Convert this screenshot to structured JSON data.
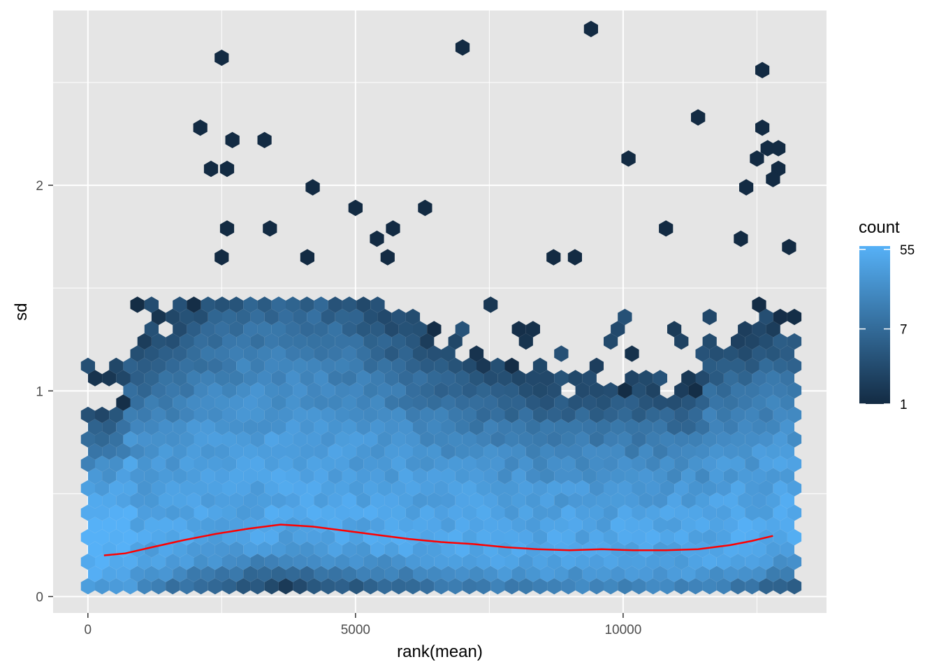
{
  "chart_data": {
    "type": "hexbin",
    "title": "",
    "xlabel": "rank(mean)",
    "ylabel": "sd",
    "xlim": [
      -650,
      13800
    ],
    "ylim": [
      -0.08,
      2.85
    ],
    "x_ticks": [
      0,
      5000,
      10000
    ],
    "x_tick_labels": [
      "0",
      "5000",
      "10000"
    ],
    "y_ticks": [
      0,
      1,
      2
    ],
    "y_tick_labels": [
      "0",
      "1",
      "2"
    ],
    "x_minor_ticks": [
      2500,
      7500,
      12500
    ],
    "y_minor_ticks": [
      0.5,
      1.5,
      2.5
    ],
    "grid": true,
    "panel_background": "#e5e5e5",
    "grid_color": "#ffffff",
    "legend": {
      "title": "count",
      "placement": "right",
      "scale": "log",
      "labels": [
        "55",
        "7",
        "1"
      ],
      "values": [
        55,
        7,
        1
      ],
      "color_low": "#132b43",
      "color_high": "#56b1f7"
    },
    "hexbin": {
      "bins": 50,
      "x_range": [
        1,
        13200
      ],
      "density_peaks": [
        {
          "x": 500,
          "y": 0.2,
          "count": 60
        },
        {
          "x": 6000,
          "y": 0.25,
          "count": 45
        },
        {
          "x": 12000,
          "y": 0.25,
          "count": 40
        }
      ],
      "outliers": [
        {
          "x": 2500,
          "y": 2.62
        },
        {
          "x": 7000,
          "y": 2.67
        },
        {
          "x": 9400,
          "y": 2.76
        },
        {
          "x": 12600,
          "y": 2.56
        },
        {
          "x": 2100,
          "y": 2.28
        },
        {
          "x": 2700,
          "y": 2.22
        },
        {
          "x": 3300,
          "y": 2.22
        },
        {
          "x": 2300,
          "y": 2.08
        },
        {
          "x": 2600,
          "y": 2.08
        },
        {
          "x": 4200,
          "y": 1.99
        },
        {
          "x": 5000,
          "y": 1.89
        },
        {
          "x": 6300,
          "y": 1.89
        },
        {
          "x": 10100,
          "y": 2.13
        },
        {
          "x": 11400,
          "y": 2.33
        },
        {
          "x": 12600,
          "y": 2.28
        },
        {
          "x": 12700,
          "y": 2.18
        },
        {
          "x": 12500,
          "y": 2.13
        },
        {
          "x": 12900,
          "y": 2.18
        },
        {
          "x": 12900,
          "y": 2.08
        },
        {
          "x": 12800,
          "y": 2.03
        },
        {
          "x": 12300,
          "y": 1.99
        },
        {
          "x": 2600,
          "y": 1.79
        },
        {
          "x": 3400,
          "y": 1.79
        },
        {
          "x": 5700,
          "y": 1.79
        },
        {
          "x": 5400,
          "y": 1.74
        },
        {
          "x": 10800,
          "y": 1.79
        },
        {
          "x": 12200,
          "y": 1.74
        },
        {
          "x": 13100,
          "y": 1.7
        },
        {
          "x": 2500,
          "y": 1.65
        },
        {
          "x": 4100,
          "y": 1.65
        },
        {
          "x": 5600,
          "y": 1.65
        },
        {
          "x": 8700,
          "y": 1.65
        },
        {
          "x": 9100,
          "y": 1.65
        }
      ]
    },
    "smooth_line": {
      "color": "#ff0000",
      "x": [
        300,
        700,
        1200,
        1800,
        2400,
        3000,
        3600,
        4200,
        4800,
        5400,
        6000,
        6600,
        7200,
        7800,
        8400,
        9000,
        9600,
        10200,
        10800,
        11400,
        12000,
        12400,
        12800
      ],
      "y": [
        0.2,
        0.21,
        0.24,
        0.275,
        0.305,
        0.33,
        0.35,
        0.34,
        0.32,
        0.3,
        0.28,
        0.265,
        0.255,
        0.24,
        0.23,
        0.225,
        0.23,
        0.225,
        0.225,
        0.23,
        0.25,
        0.27,
        0.295
      ]
    }
  }
}
